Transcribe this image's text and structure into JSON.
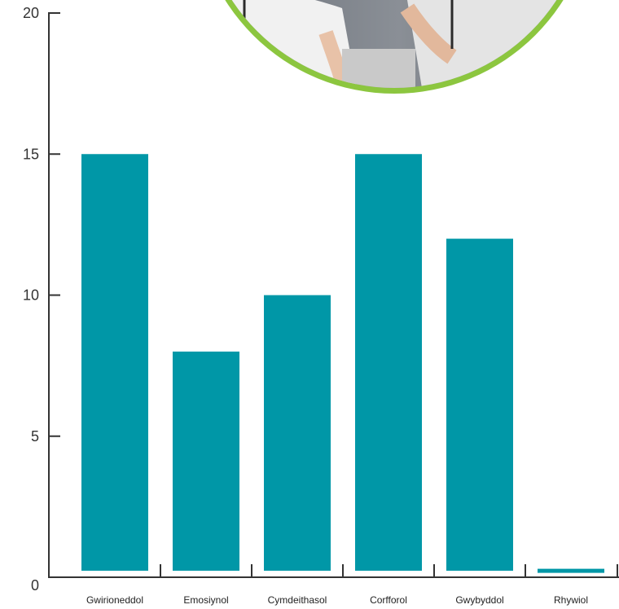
{
  "chart_data": {
    "type": "bar",
    "categories": [
      "Gwirioneddol",
      "Emosiynol",
      "Cymdeithasol",
      "Corfforol",
      "Gwybyddol",
      "Rhywiol"
    ],
    "values": [
      15,
      8,
      10,
      15,
      12,
      0.3
    ],
    "title": "",
    "xlabel": "",
    "ylabel": "",
    "ylim": [
      0,
      20
    ],
    "yticks": [
      "0",
      "5",
      "10",
      "15",
      "20"
    ],
    "grid": false,
    "legend": "none"
  },
  "colors": {
    "bar": "#0097a7",
    "axis": "#333333",
    "ring": "#8cc63f"
  },
  "decoration": {
    "photo": "circular photo with green ring, partially cropped at top"
  }
}
